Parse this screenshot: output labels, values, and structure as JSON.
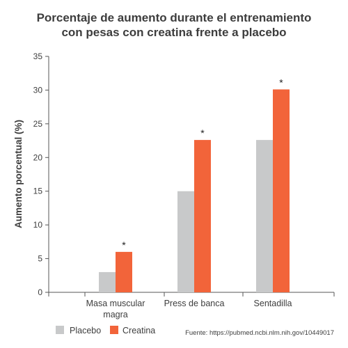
{
  "chart_data": {
    "type": "bar",
    "title_lines": [
      "Porcentaje de aumento durante el entrenamiento",
      "con pesas con creatina frente a placebo"
    ],
    "ylabel": "Aumento porcentual (%)",
    "xlabel": "",
    "ylim": [
      0,
      35
    ],
    "yticks": [
      0,
      5,
      10,
      15,
      20,
      25,
      30,
      35
    ],
    "grid": false,
    "legend_placement": "bottom-left",
    "categories": [
      [
        "Masa muscular",
        "magra"
      ],
      [
        "Press de banca"
      ],
      [
        "Sentadilla"
      ]
    ],
    "series": [
      {
        "name": "Placebo",
        "color": "#c8c9ca",
        "values": [
          3.0,
          15.0,
          22.6
        ]
      },
      {
        "name": "Creatina",
        "color": "#f2643a",
        "values": [
          6.0,
          22.6,
          30.1
        ]
      }
    ],
    "significance": [
      "*",
      "*",
      "*"
    ],
    "source": "Fuente: https://pubmed.ncbi.nlm.nih.gov/10449017"
  }
}
